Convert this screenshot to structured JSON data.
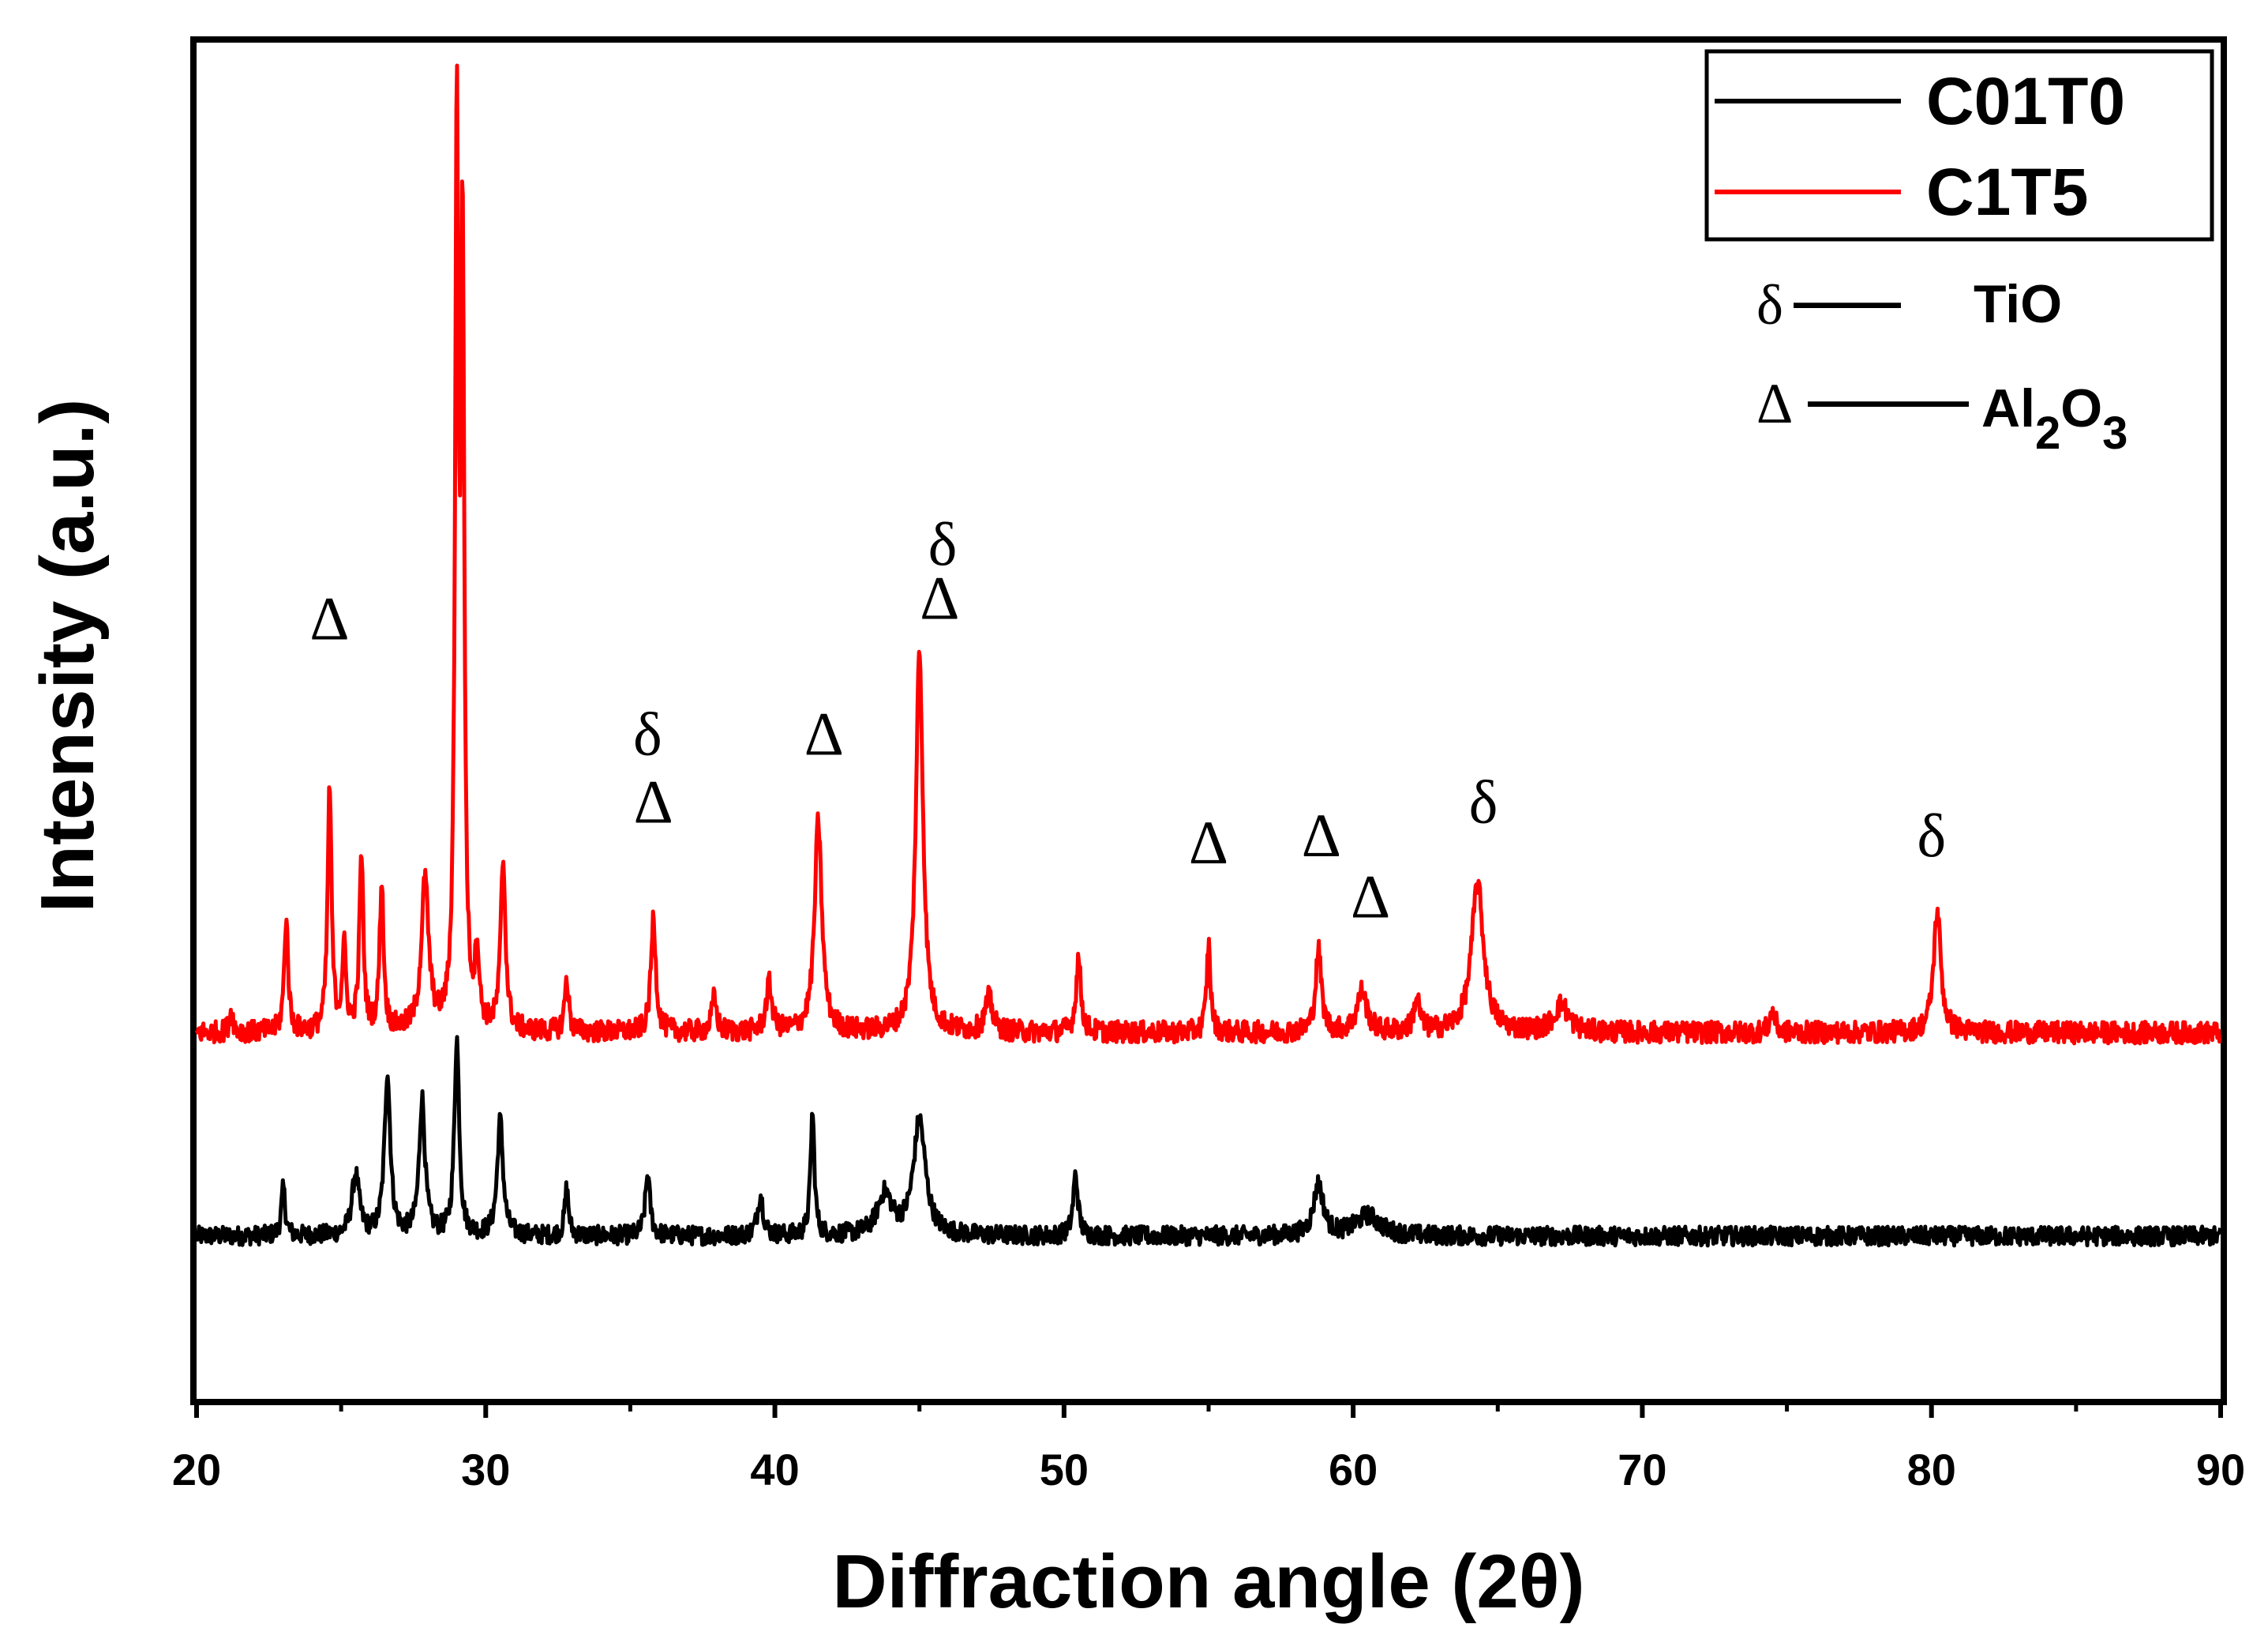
{
  "chart_data": {
    "type": "line",
    "title": "",
    "xlabel": "Diffraction angle (2θ)",
    "ylabel": "Intensity (a.u.)",
    "xlim": [
      20,
      90
    ],
    "ylim": [
      0,
      100
    ],
    "x_ticks": [
      "20",
      "30",
      "40",
      "50",
      "60",
      "70",
      "80",
      "90"
    ],
    "legend_position": "top-right",
    "series": [
      {
        "name": "C01T0",
        "color": "#000000",
        "baseline": 12,
        "noise": 0.7,
        "peaks": [
          {
            "x": 23.0,
            "h": 3.5,
            "w": 0.08
          },
          {
            "x": 25.5,
            "h": 4.5,
            "w": 0.15
          },
          {
            "x": 26.6,
            "h": 12.0,
            "w": 0.12
          },
          {
            "x": 27.8,
            "h": 10.0,
            "w": 0.12
          },
          {
            "x": 29.0,
            "h": 14.5,
            "w": 0.1
          },
          {
            "x": 30.5,
            "h": 8.5,
            "w": 0.12
          },
          {
            "x": 32.8,
            "h": 3.5,
            "w": 0.08
          },
          {
            "x": 35.6,
            "h": 4.5,
            "w": 0.1
          },
          {
            "x": 39.5,
            "h": 3.0,
            "w": 0.12
          },
          {
            "x": 41.3,
            "h": 9.0,
            "w": 0.08
          },
          {
            "x": 43.8,
            "h": 3.0,
            "w": 0.3
          },
          {
            "x": 45.0,
            "h": 8.5,
            "w": 0.25
          },
          {
            "x": 50.4,
            "h": 4.5,
            "w": 0.1
          },
          {
            "x": 58.8,
            "h": 3.8,
            "w": 0.2
          },
          {
            "x": 60.5,
            "h": 1.5,
            "w": 0.5
          }
        ]
      },
      {
        "name": "C1T5",
        "color": "#ff0000",
        "baseline": 27,
        "noise": 0.8,
        "peaks": [
          {
            "x": 21.2,
            "h": 1.5,
            "w": 0.08
          },
          {
            "x": 23.1,
            "h": 8.5,
            "w": 0.08
          },
          {
            "x": 24.6,
            "h": 18.0,
            "w": 0.08
          },
          {
            "x": 25.1,
            "h": 6.0,
            "w": 0.08
          },
          {
            "x": 25.7,
            "h": 13.0,
            "w": 0.08
          },
          {
            "x": 26.4,
            "h": 11.0,
            "w": 0.08
          },
          {
            "x": 27.9,
            "h": 11.0,
            "w": 0.15
          },
          {
            "x": 29.0,
            "h": 65.0,
            "w": 0.07
          },
          {
            "x": 29.2,
            "h": 56.0,
            "w": 0.07
          },
          {
            "x": 29.7,
            "h": 5.5,
            "w": 0.08
          },
          {
            "x": 30.6,
            "h": 12.5,
            "w": 0.1
          },
          {
            "x": 32.8,
            "h": 4.0,
            "w": 0.08
          },
          {
            "x": 35.8,
            "h": 8.5,
            "w": 0.1
          },
          {
            "x": 37.9,
            "h": 2.5,
            "w": 0.1
          },
          {
            "x": 39.8,
            "h": 3.5,
            "w": 0.12
          },
          {
            "x": 41.5,
            "h": 15.5,
            "w": 0.15
          },
          {
            "x": 45.0,
            "h": 28.0,
            "w": 0.15
          },
          {
            "x": 47.4,
            "h": 2.5,
            "w": 0.15
          },
          {
            "x": 50.5,
            "h": 5.5,
            "w": 0.1
          },
          {
            "x": 55.0,
            "h": 6.5,
            "w": 0.08
          },
          {
            "x": 58.8,
            "h": 6.0,
            "w": 0.12
          },
          {
            "x": 60.3,
            "h": 3.0,
            "w": 0.2
          },
          {
            "x": 62.2,
            "h": 2.5,
            "w": 0.12
          },
          {
            "x": 64.3,
            "h": 11.0,
            "w": 0.25
          },
          {
            "x": 67.2,
            "h": 2.0,
            "w": 0.3
          },
          {
            "x": 74.5,
            "h": 1.5,
            "w": 0.12
          },
          {
            "x": 80.2,
            "h": 9.0,
            "w": 0.15
          }
        ]
      }
    ],
    "legend": [
      {
        "label": "C01T0",
        "color": "#000000"
      },
      {
        "label": "C1T5",
        "color": "#ff0000"
      }
    ],
    "marker_legend": [
      {
        "symbol": "δ",
        "dashes": "——",
        "label": "TiO"
      },
      {
        "symbol": "Δ",
        "dashes": "———",
        "label": "Al",
        "sub": "2",
        "label2": "O",
        "sub2": "3"
      }
    ],
    "annotations": [
      {
        "x": 24.6,
        "y": 56.0,
        "text": "Δ"
      },
      {
        "x": 35.6,
        "y": 47.5,
        "text": "δ"
      },
      {
        "x": 35.8,
        "y": 42.5,
        "text": "Δ"
      },
      {
        "x": 41.7,
        "y": 47.5,
        "text": "Δ"
      },
      {
        "x": 45.8,
        "y": 61.5,
        "text": "δ"
      },
      {
        "x": 45.7,
        "y": 57.5,
        "text": "Δ"
      },
      {
        "x": 55.0,
        "y": 39.5,
        "text": "Δ"
      },
      {
        "x": 58.9,
        "y": 40.0,
        "text": "Δ"
      },
      {
        "x": 60.6,
        "y": 35.5,
        "text": "Δ"
      },
      {
        "x": 64.5,
        "y": 42.5,
        "text": "δ"
      },
      {
        "x": 80.0,
        "y": 40.0,
        "text": "δ"
      }
    ]
  }
}
